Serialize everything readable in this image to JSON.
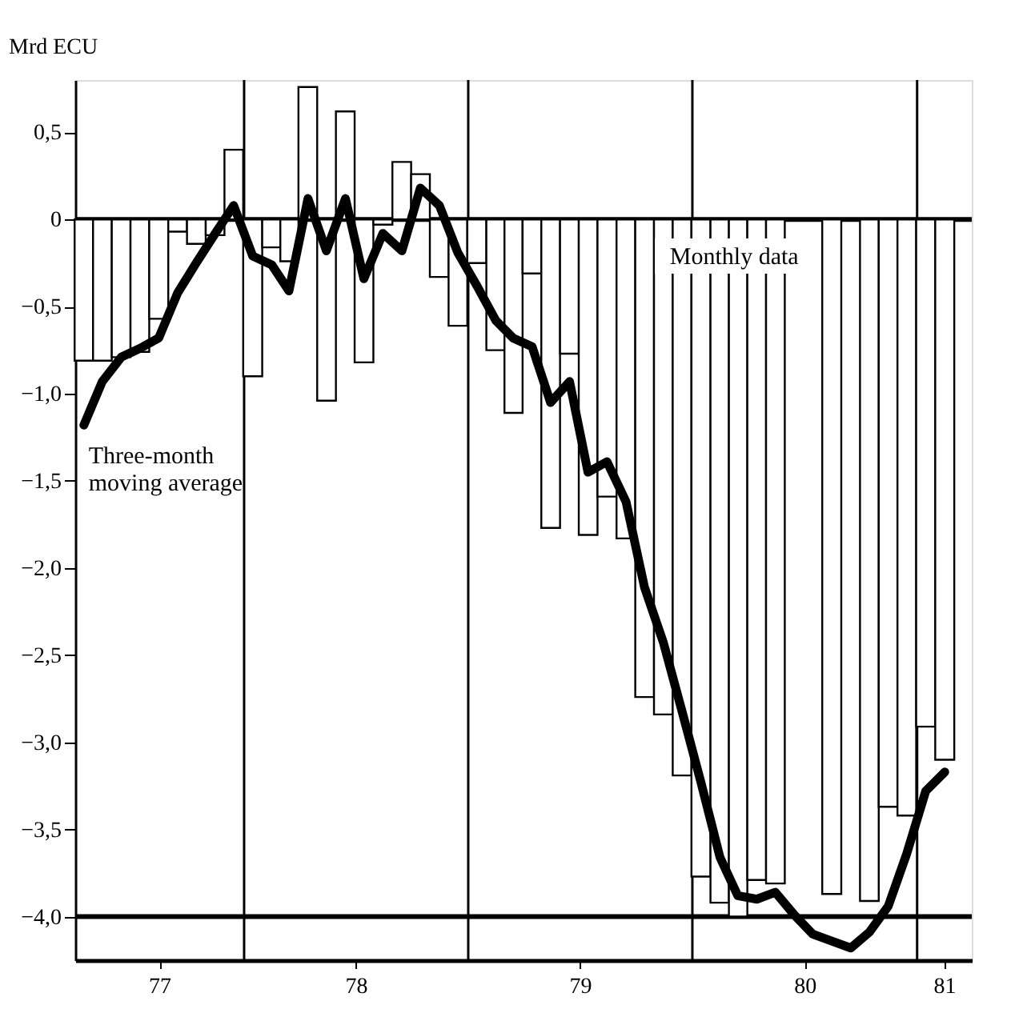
{
  "chart_data": {
    "type": "bar",
    "ylabel": "Mrd ECU",
    "x": [
      "1977-04-15",
      "1977-05-15",
      "1977-06-15",
      "1977-07-15",
      "1977-08-15",
      "1977-09-15",
      "1977-10-15",
      "1977-11-15",
      "1977-12-15",
      "1978-01-15",
      "1978-02-15",
      "1978-03-15",
      "1978-04-15",
      "1978-05-15",
      "1978-06-15",
      "1978-07-15",
      "1978-08-15",
      "1978-09-15",
      "1978-10-15",
      "1978-11-15",
      "1978-12-15",
      "1979-01-15",
      "1979-02-15",
      "1979-03-15",
      "1979-04-15",
      "1979-05-15",
      "1979-06-15",
      "1979-07-15",
      "1979-08-15",
      "1979-09-15",
      "1979-10-15",
      "1979-11-15",
      "1979-12-15",
      "1980-01-15",
      "1980-02-15",
      "1980-03-15",
      "1980-04-15",
      "1980-05-15",
      "1980-06-15",
      "1980-07-15",
      "1980-08-15",
      "1980-09-15",
      "1980-10-15",
      "1980-11-15",
      "1980-12-15",
      "1981-01-15",
      "1981-02-15"
    ],
    "series": [
      {
        "name": "Monthly data",
        "color": "#ffffff",
        "values": [
          -0.81,
          -0.81,
          -0.79,
          -0.76,
          -0.57,
          -0.07,
          -0.14,
          -0.09,
          0.4,
          -0.9,
          -0.16,
          -0.24,
          0.76,
          -1.04,
          0.62,
          -0.82,
          -0.03,
          0.33,
          0.26,
          -0.33,
          -0.61,
          -0.25,
          -0.75,
          -1.11,
          -0.31,
          -1.77,
          -0.77,
          -1.81,
          -1.59,
          -1.83,
          -2.74,
          -2.84,
          -3.19,
          -3.77,
          -3.92,
          -4.0,
          -3.79,
          -3.81,
          null,
          null,
          -3.87,
          null,
          -3.91,
          -3.37,
          -3.42,
          -2.91,
          -3.1
        ]
      },
      {
        "name": "Three-month moving average",
        "type": "line",
        "color": "#000000",
        "values": [
          -1.18,
          -0.93,
          -0.79,
          -0.74,
          -0.68,
          -0.42,
          -0.25,
          -0.08,
          0.08,
          -0.21,
          -0.26,
          -0.41,
          0.12,
          -0.18,
          0.12,
          -0.34,
          -0.08,
          -0.18,
          0.18,
          0.08,
          -0.19,
          -0.38,
          -0.58,
          -0.68,
          -0.73,
          -1.05,
          -0.93,
          -1.45,
          -1.39,
          -1.62,
          -2.11,
          -2.43,
          -2.82,
          -3.23,
          -3.66,
          -3.88,
          -3.9,
          -3.86,
          -3.99,
          -4.1,
          -4.14,
          -4.18,
          -4.09,
          -3.94,
          -3.64,
          -3.28,
          -3.17
        ]
      }
    ],
    "xlim": [
      "1977-04-01",
      "1981-03-31"
    ],
    "xticks": [
      {
        "value": "1977-08-16",
        "label": "77"
      },
      {
        "value": "1978-07-02",
        "label": "78"
      },
      {
        "value": "1979-07-02",
        "label": "79"
      },
      {
        "value": "1980-07-02",
        "label": "80"
      },
      {
        "value": "1981-02-14",
        "label": "81"
      }
    ],
    "ylim": [
      -4.25,
      0.8
    ],
    "yticks": [
      {
        "value": 0.5,
        "label": "0,5"
      },
      0,
      {
        "value": -0.5,
        "label": "−0,5"
      },
      {
        "value": -1.0,
        "label": "−1,0"
      },
      {
        "value": -1.5,
        "label": "−1,5"
      },
      {
        "value": -2.0,
        "label": "−2,0"
      },
      {
        "value": -2.5,
        "label": "−2,5"
      },
      {
        "value": -3.0,
        "label": "−3,0"
      },
      {
        "value": -3.5,
        "label": "−3,5"
      },
      {
        "value": -4.0,
        "label": "−4,0"
      }
    ],
    "ref_lines": [
      {
        "axis": "y",
        "value": 0,
        "color": "#000000"
      },
      {
        "axis": "y",
        "value": -4.0,
        "color": "#000000"
      },
      {
        "axis": "x",
        "value": "1978-01-01",
        "color": "#000000"
      },
      {
        "axis": "x",
        "value": "1979-01-01",
        "color": "#000000"
      },
      {
        "axis": "x",
        "value": "1980-01-01",
        "color": "#000000"
      },
      {
        "axis": "x",
        "value": "1981-01-01",
        "color": "#000000"
      }
    ],
    "grid": false
  }
}
